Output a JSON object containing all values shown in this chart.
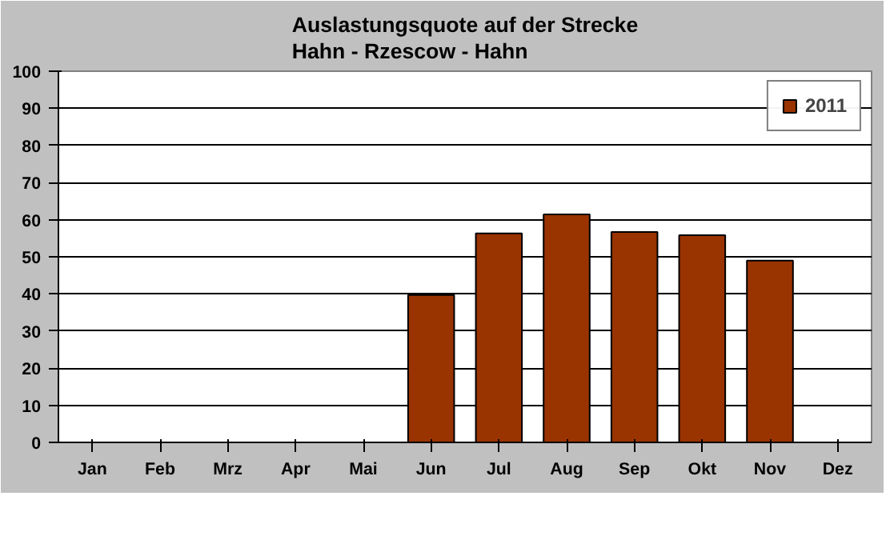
{
  "chart_data": {
    "type": "bar",
    "title": "Auslastungsquote auf der Strecke\nHahn - Rzescow  - Hahn",
    "categories": [
      "Jan",
      "Feb",
      "Mrz",
      "Apr",
      "Mai",
      "Jun",
      "Jul",
      "Aug",
      "Sep",
      "Okt",
      "Nov",
      "Dez"
    ],
    "series": [
      {
        "name": "2011",
        "color": "#993300",
        "values": [
          null,
          null,
          null,
          null,
          null,
          39.7,
          56.3,
          61.4,
          56.7,
          55.8,
          49.0,
          null
        ]
      }
    ],
    "ylim": [
      0,
      100
    ],
    "yticks": [
      0,
      10,
      20,
      30,
      40,
      50,
      60,
      70,
      80,
      90,
      100
    ],
    "grid": "y",
    "legend": "top right"
  }
}
